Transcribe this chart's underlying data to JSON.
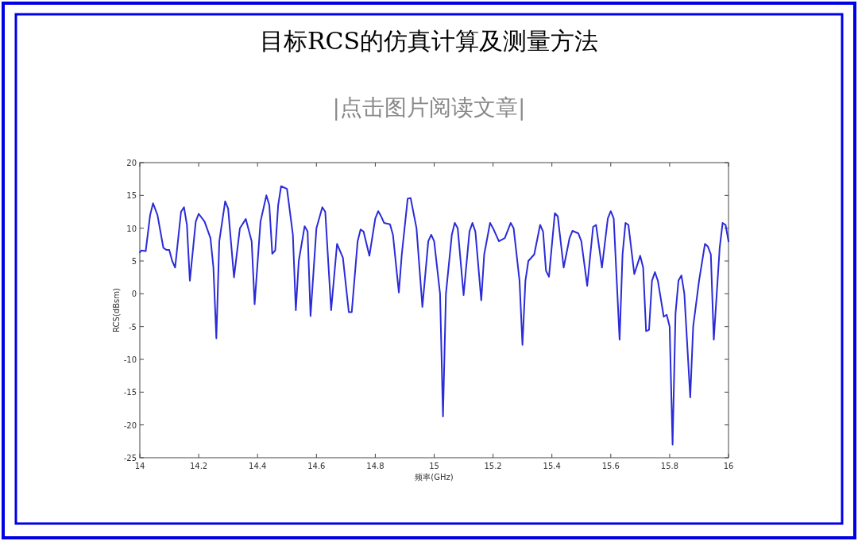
{
  "chart_data": {
    "type": "line",
    "title": "目标RCS的仿真计算及测量方法",
    "subtitle": "|点击图片阅读文章|",
    "xlabel": "频率(GHz)",
    "ylabel": "RCS(dBsm)",
    "xlim": [
      14,
      16
    ],
    "ylim": [
      -25,
      20
    ],
    "xticks": [
      14,
      14.2,
      14.4,
      14.6,
      14.8,
      15,
      15.2,
      15.4,
      15.6,
      15.8,
      16
    ],
    "yticks": [
      -25,
      -20,
      -15,
      -10,
      -5,
      0,
      5,
      10,
      15,
      20
    ],
    "x": [
      14.0,
      14.005,
      14.02,
      14.035,
      14.045,
      14.06,
      14.08,
      14.09,
      14.1,
      14.11,
      14.12,
      14.14,
      14.15,
      14.16,
      14.17,
      14.19,
      14.2,
      14.22,
      14.24,
      14.25,
      14.26,
      14.27,
      14.29,
      14.3,
      14.32,
      14.34,
      14.36,
      14.38,
      14.39,
      14.41,
      14.43,
      14.44,
      14.45,
      14.46,
      14.47,
      14.48,
      14.5,
      14.52,
      14.53,
      14.54,
      14.56,
      14.57,
      14.58,
      14.6,
      14.62,
      14.63,
      14.65,
      14.67,
      14.69,
      14.71,
      14.72,
      14.74,
      14.75,
      14.76,
      14.78,
      14.8,
      14.81,
      14.82,
      14.83,
      14.85,
      14.86,
      14.88,
      14.89,
      14.91,
      14.92,
      14.94,
      14.96,
      14.98,
      14.99,
      15.0,
      15.02,
      15.03,
      15.04,
      15.06,
      15.07,
      15.08,
      15.1,
      15.12,
      15.13,
      15.14,
      15.16,
      15.17,
      15.19,
      15.2,
      15.22,
      15.24,
      15.26,
      15.27,
      15.29,
      15.3,
      15.31,
      15.32,
      15.34,
      15.36,
      15.37,
      15.38,
      15.39,
      15.41,
      15.42,
      15.44,
      15.46,
      15.47,
      15.49,
      15.5,
      15.52,
      15.54,
      15.55,
      15.57,
      15.59,
      15.6,
      15.61,
      15.63,
      15.64,
      15.65,
      15.66,
      15.68,
      15.7,
      15.71,
      15.72,
      15.73,
      15.74,
      15.75,
      15.76,
      15.78,
      15.79,
      15.8,
      15.81,
      15.82,
      15.83,
      15.84,
      15.85,
      15.87,
      15.88,
      15.9,
      15.92,
      15.93,
      15.94,
      15.95,
      15.96,
      15.97,
      15.98,
      15.99,
      16.0
    ],
    "series": [
      {
        "color": "#2b2bd9",
        "values": [
          6.3,
          6.6,
          6.5,
          12,
          13.8,
          12,
          7,
          6.7,
          6.7,
          5,
          4,
          12.5,
          13.2,
          10.5,
          2,
          11,
          12.2,
          11,
          8.5,
          4,
          -6.8,
          8,
          14.1,
          13,
          2.5,
          10,
          11.4,
          8,
          -1.6,
          11,
          15,
          13.5,
          6.1,
          6.6,
          13.5,
          16.4,
          16,
          9,
          -2.5,
          5,
          10.3,
          9.5,
          -3.4,
          10,
          13.2,
          12.5,
          -2.5,
          7.6,
          5.5,
          -2.8,
          -2.8,
          8,
          9.8,
          9.5,
          5.8,
          11.5,
          12.6,
          11.8,
          10.8,
          10.6,
          9,
          0.2,
          6,
          14.5,
          14.6,
          10,
          -2,
          8,
          9,
          8,
          0,
          -18.7,
          0,
          9,
          10.8,
          10,
          -0.2,
          9.5,
          10.8,
          9.5,
          -1,
          6,
          10.8,
          10,
          8,
          8.5,
          10.8,
          10,
          2,
          -7.8,
          2,
          5,
          6,
          10.5,
          9.5,
          3.5,
          2.6,
          12.3,
          11.8,
          4,
          8.5,
          9.6,
          9.2,
          8,
          1.2,
          10.2,
          10.5,
          4,
          11.5,
          12.6,
          11.5,
          -7,
          6,
          10.8,
          10.5,
          3,
          5.8,
          4,
          -5.7,
          -5.5,
          2,
          3.3,
          2,
          -3.5,
          -3.2,
          -5,
          -23,
          -3,
          2,
          2.8,
          0,
          -15.8,
          -5,
          2,
          7.6,
          7.2,
          6,
          -7,
          0,
          7,
          10.8,
          10.5,
          8
        ]
      }
    ]
  }
}
